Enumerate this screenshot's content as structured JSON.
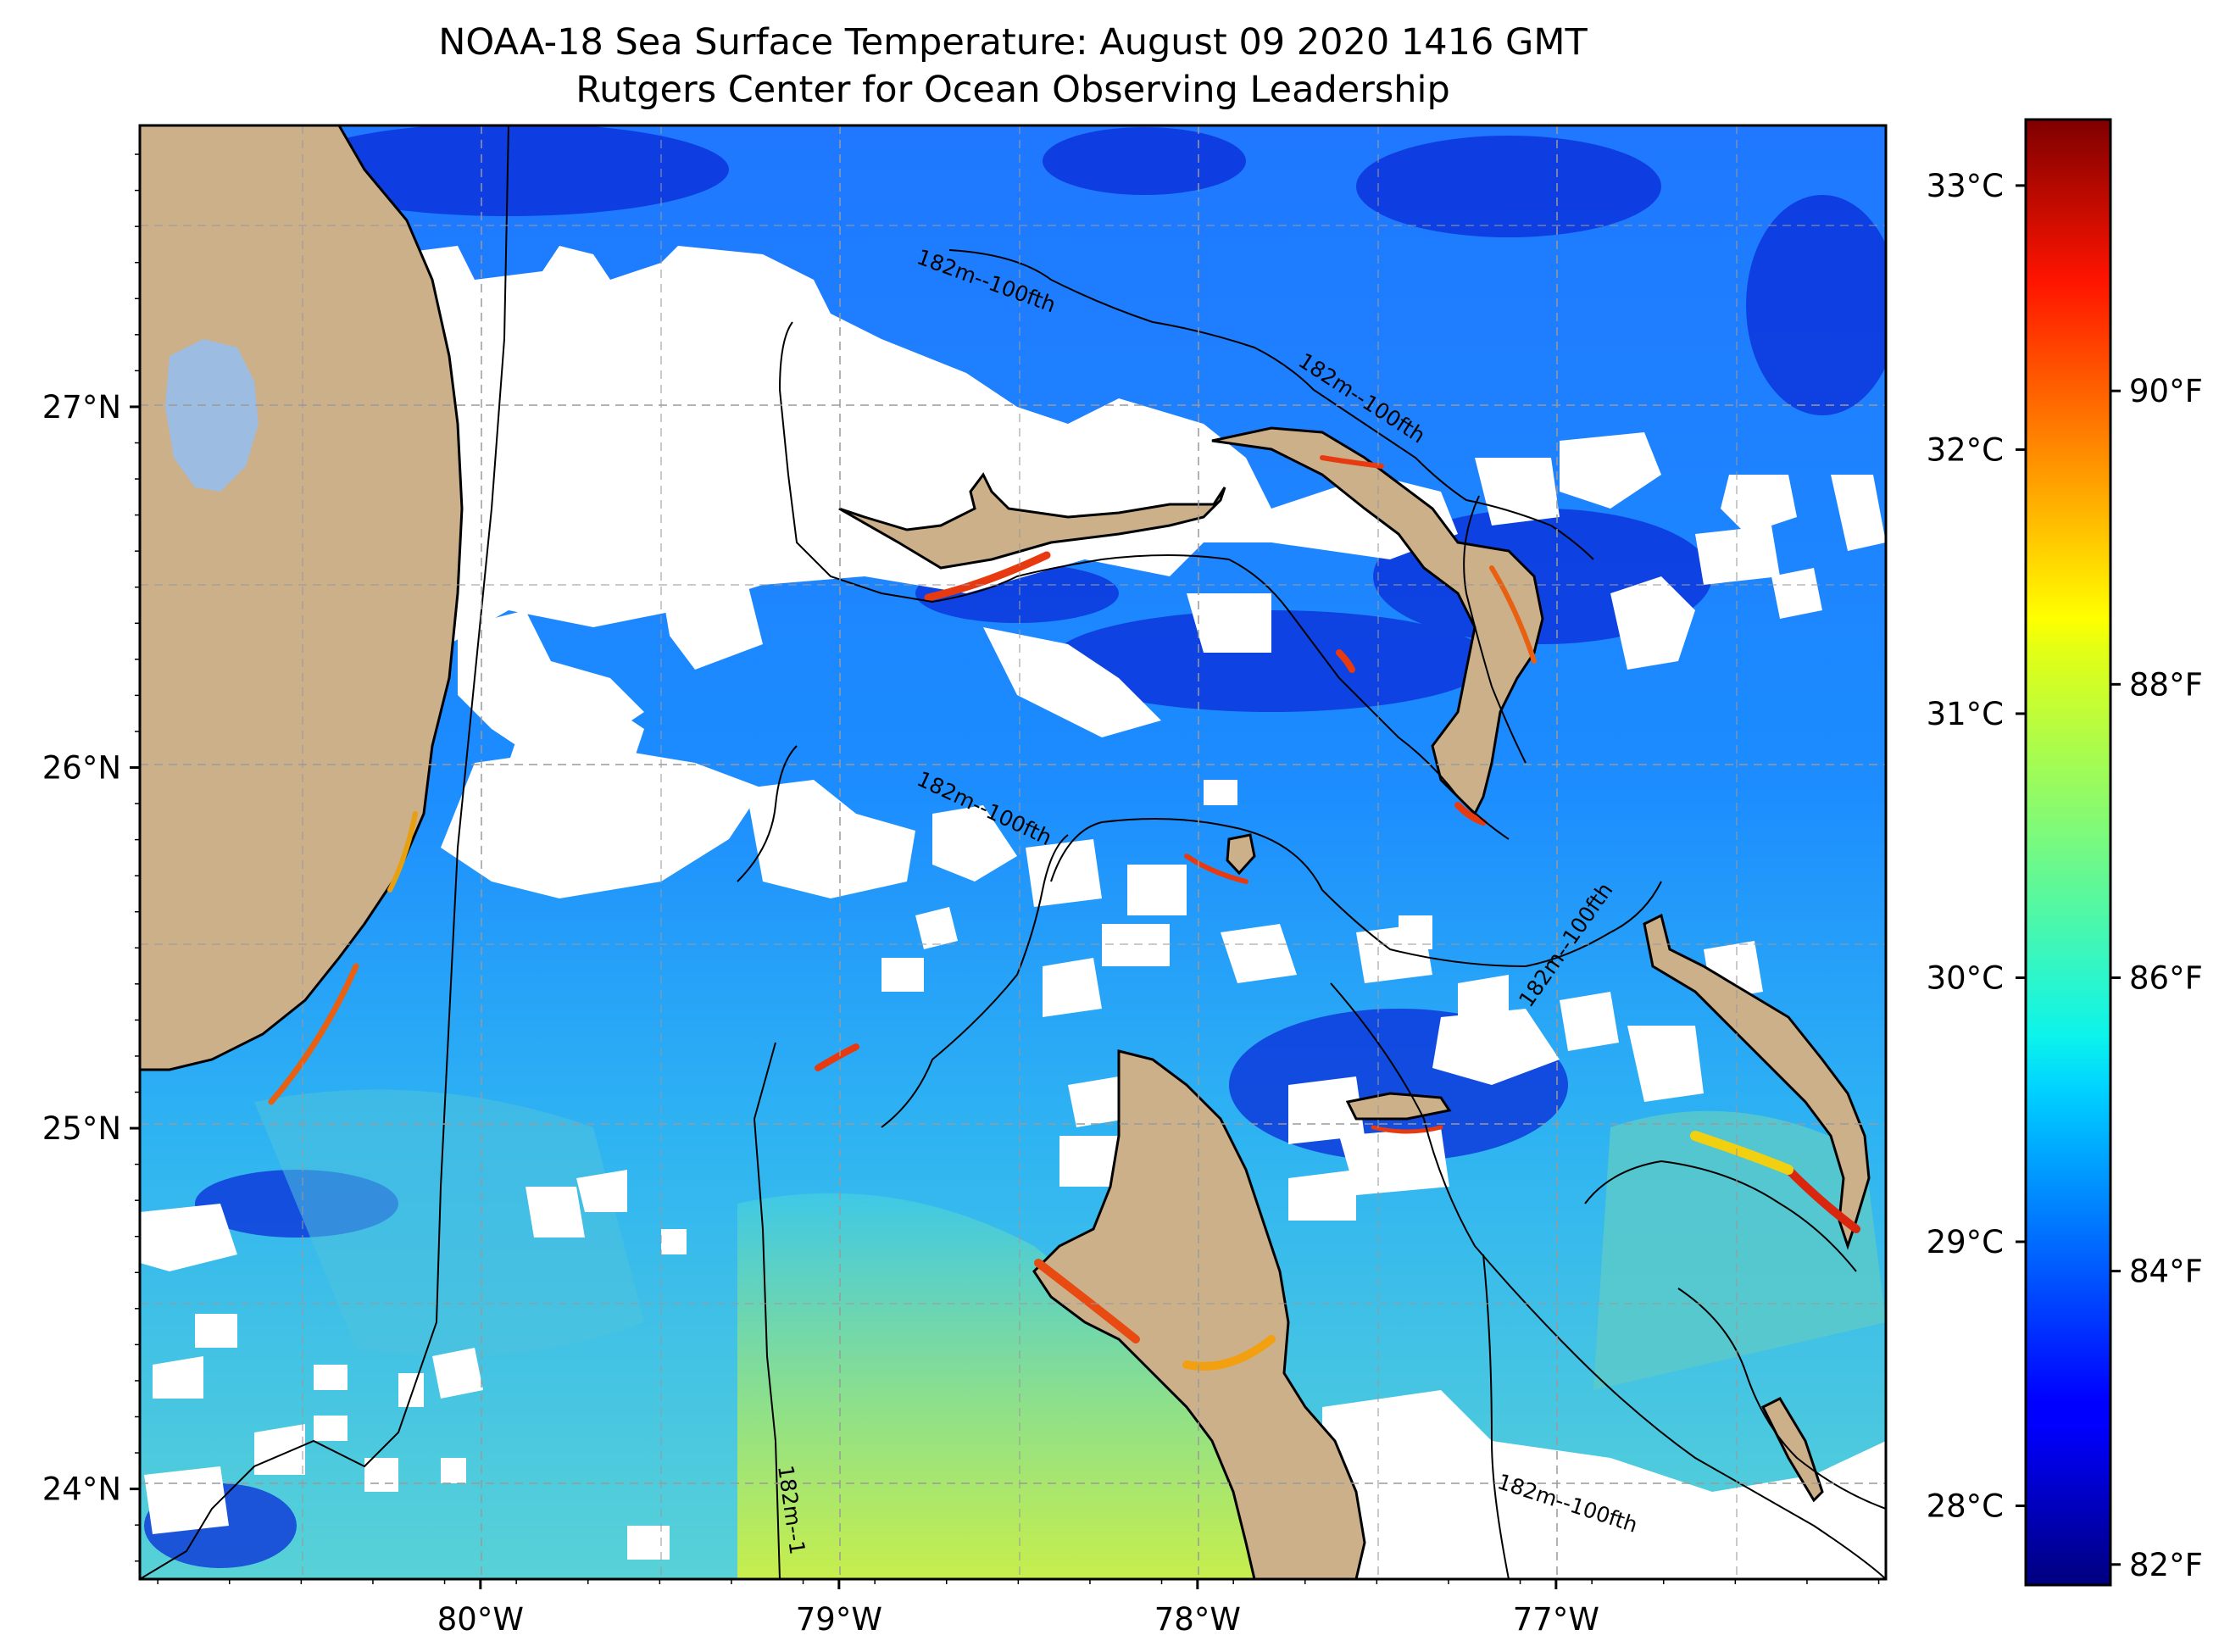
{
  "header": {
    "title": "NOAA-18 Sea Surface Temperature: August 09 2020 1416 GMT",
    "subtitle": "Rutgers Center for Ocean Observing Leadership"
  },
  "map": {
    "lat_range": [
      23.75,
      27.78
    ],
    "lon_range": [
      -80.95,
      -76.08
    ],
    "lat_ticks": [
      {
        "value": 24,
        "label": "24°N"
      },
      {
        "value": 25,
        "label": "25°N"
      },
      {
        "value": 26,
        "label": "26°N"
      },
      {
        "value": 27,
        "label": "27°N"
      }
    ],
    "lon_ticks": [
      {
        "value": -80,
        "label": "80°W"
      },
      {
        "value": -79,
        "label": "79°W"
      },
      {
        "value": -78,
        "label": "78°W"
      },
      {
        "value": -77,
        "label": "77°W"
      }
    ],
    "gridlines": true,
    "contour_label": "182m--100fth",
    "colors": {
      "land": "#cbb08a",
      "cloud_mask": "#ffffff",
      "lake": "#9dbce2",
      "contour": "#000000"
    }
  },
  "colorbar": {
    "colormap": "jet",
    "range_c": [
      27.7,
      33.25
    ],
    "celsius_ticks": [
      {
        "value": 28,
        "label": "28°C"
      },
      {
        "value": 29,
        "label": "29°C"
      },
      {
        "value": 30,
        "label": "30°C"
      },
      {
        "value": 31,
        "label": "31°C"
      },
      {
        "value": 32,
        "label": "32°C"
      },
      {
        "value": 33,
        "label": "33°C"
      }
    ],
    "fahrenheit_ticks": [
      {
        "value": 82,
        "label": "82°F"
      },
      {
        "value": 84,
        "label": "84°F"
      },
      {
        "value": 86,
        "label": "86°F"
      },
      {
        "value": 88,
        "label": "88°F"
      },
      {
        "value": 90,
        "label": "90°F"
      }
    ]
  }
}
